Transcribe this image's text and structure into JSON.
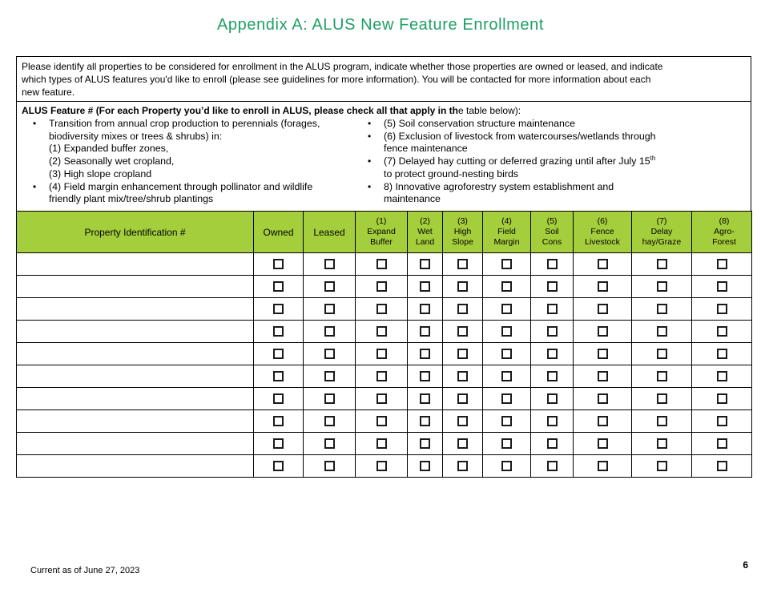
{
  "page": {
    "title": "Appendix A: ALUS New Feature Enrollment",
    "footer_date": "Current as of June 27, 2023",
    "page_number": "6"
  },
  "colors": {
    "title_green": "#1E9F65",
    "table_header_green": "#A5CE3C",
    "border_black": "#000000"
  },
  "intro": {
    "lines": [
      "Please identify all properties to be considered for enrollment in the ALUS program, indicate whether those properties are owned or leased, and indicate",
      "which types of ALUS features you'd like to enroll (please see guidelines for more information).  You will be contacted for more information about each",
      "new feature."
    ]
  },
  "features": {
    "heading_bold": "ALUS Feature # (For each Property you’d like to enroll in ALUS, please check all that apply in th",
    "heading_regular": "e table below):",
    "bullet_glyph": "•",
    "left_bullets": [
      {
        "lines": [
          [
            "Transition from annual crop production to perennials (forages,"
          ],
          [
            "biodiversity mixes or trees & shrubs) in:"
          ],
          [
            "(1) Expanded buffer zones,"
          ],
          [
            "(2) Seasonally wet cropland,"
          ],
          [
            "(3) High slope cropland"
          ]
        ]
      },
      {
        "lines": [
          [
            "(4) Field margin enhancement through pollinator and wildlife"
          ],
          [
            "friendly plant mix/tree/shrub plantings"
          ]
        ]
      }
    ],
    "right_bullets": [
      {
        "lines": [
          [
            "(5) Soil conservation structure maintenance"
          ]
        ]
      },
      {
        "lines": [
          [
            "(6) Exclusion of livestock from watercourses/wetlands through"
          ],
          [
            "fence maintenance"
          ]
        ]
      },
      {
        "lines": [
          [
            "(7) Delayed hay cutting or deferred grazing until after July 15",
            {
              "sup": "th"
            }
          ],
          [
            "to protect ground-nesting birds"
          ]
        ]
      },
      {
        "lines": [
          [
            "8) Innovative agroforestry system establishment and"
          ],
          [
            "maintenance"
          ]
        ]
      }
    ]
  },
  "table": {
    "headers": [
      {
        "key": "property-id",
        "lines": [
          "Property Identification #"
        ]
      },
      {
        "key": "owned",
        "lines": [
          "Owned"
        ]
      },
      {
        "key": "leased",
        "lines": [
          "Leased"
        ]
      },
      {
        "key": "expand-buffer",
        "lines": [
          "(1)",
          "Expand",
          "Buffer"
        ]
      },
      {
        "key": "wet-land",
        "lines": [
          "(2)",
          "Wet",
          "Land"
        ]
      },
      {
        "key": "high-slope",
        "lines": [
          "(3)",
          "High",
          "Slope"
        ]
      },
      {
        "key": "field-margin",
        "lines": [
          "(4)",
          "Field",
          "Margin"
        ]
      },
      {
        "key": "soil-cons",
        "lines": [
          "(5)",
          "Soil",
          "Cons"
        ]
      },
      {
        "key": "fence-livestock",
        "lines": [
          "(6)",
          "Fence",
          "Livestock"
        ]
      },
      {
        "key": "delay-hay-graze",
        "lines": [
          "(7)",
          "Delay",
          "hay/Graze"
        ]
      },
      {
        "key": "agro-forest",
        "lines": [
          "(8)",
          "Agro-",
          "Forest"
        ]
      }
    ],
    "row_count": 10,
    "checkbox_symbol": "☐",
    "checkbox_state": "unchecked"
  }
}
